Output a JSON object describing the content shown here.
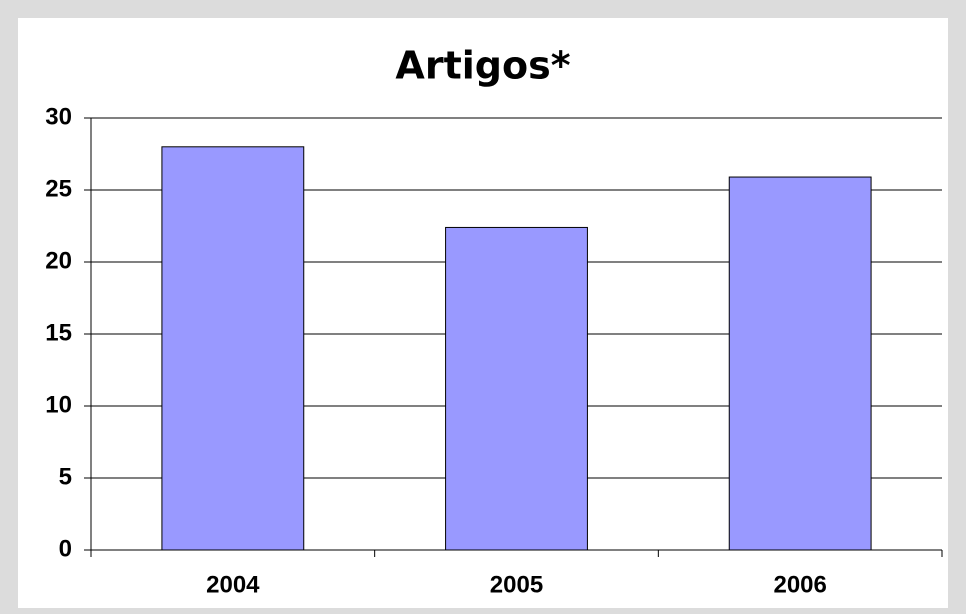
{
  "chart_data": {
    "type": "bar",
    "title": "Artigos*",
    "categories": [
      "2004",
      "2005",
      "2006"
    ],
    "values": [
      28,
      22.4,
      25.9
    ],
    "color": "#9999ff",
    "ylim": [
      0,
      30
    ],
    "yticks": [
      0,
      5,
      10,
      15,
      20,
      25,
      30
    ],
    "grid": true
  }
}
